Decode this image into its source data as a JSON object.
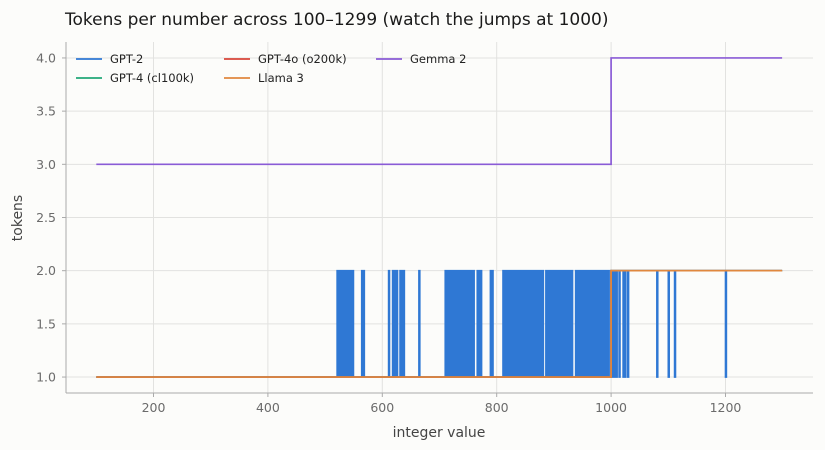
{
  "chart_data": {
    "type": "line",
    "title": "Tokens per number across 100–1299 (watch the jumps at 1000)",
    "xlabel": "integer value",
    "ylabel": "tokens",
    "xlim": [
      47,
      1353
    ],
    "ylim": [
      0.85,
      4.15
    ],
    "xticks": [
      200,
      400,
      600,
      800,
      1000,
      1200
    ],
    "yticks": [
      1.0,
      1.5,
      2.0,
      2.5,
      3.0,
      3.5,
      4.0
    ],
    "grid": true,
    "legend": {
      "position": "top-left",
      "columns": 3
    },
    "series": [
      {
        "name": "GPT-2",
        "color": "#2f78d4",
        "x_start": 100,
        "x_end": 1299,
        "baseline_before_1000": 1,
        "baseline_from_1000": 2,
        "spikes_to_2": [
          521,
          524,
          527,
          531,
          533,
          536,
          539,
          542,
          545,
          548,
          564,
          567,
          611,
          618,
          622,
          625,
          631,
          634,
          637,
          664,
          710,
          714,
          717,
          720,
          723,
          726,
          729,
          732,
          735,
          738,
          741,
          744,
          747,
          750,
          753,
          756,
          759,
          766,
          769,
          772,
          789,
          792,
          811,
          814,
          817,
          820,
          823,
          826,
          829,
          832,
          835,
          838,
          841,
          844,
          847,
          850,
          853,
          856,
          859,
          862,
          865,
          868,
          871,
          874,
          877,
          880,
          886,
          889,
          892,
          895,
          898,
          901,
          904,
          907,
          910,
          913,
          916,
          919,
          922,
          925,
          928,
          931,
          938,
          941,
          944,
          947,
          950,
          953,
          956,
          959,
          962,
          965,
          968,
          971,
          974,
          977,
          980,
          983,
          986,
          989,
          992,
          995
        ],
        "dips_to_1": [
          1003,
          1006,
          1009,
          1014,
          1021,
          1024,
          1029,
          1080,
          1100,
          1111,
          1200
        ]
      },
      {
        "name": "GPT-4 (cl100k)",
        "color": "#22a877",
        "x_start": 100,
        "x_end": 1299,
        "step_at": 1000,
        "before": 1,
        "after": 2
      },
      {
        "name": "GPT-4o (o200k)",
        "color": "#d9463a",
        "x_start": 100,
        "x_end": 1299,
        "step_at": 1000,
        "before": 1,
        "after": 2
      },
      {
        "name": "Llama 3",
        "color": "#e0873e",
        "x_start": 100,
        "x_end": 1299,
        "step_at": 1000,
        "before": 1,
        "after": 2
      },
      {
        "name": "Gemma 2",
        "color": "#8a5bd6",
        "x_start": 100,
        "x_end": 1299,
        "step_at": 1000,
        "before": 3,
        "after": 4
      }
    ]
  }
}
